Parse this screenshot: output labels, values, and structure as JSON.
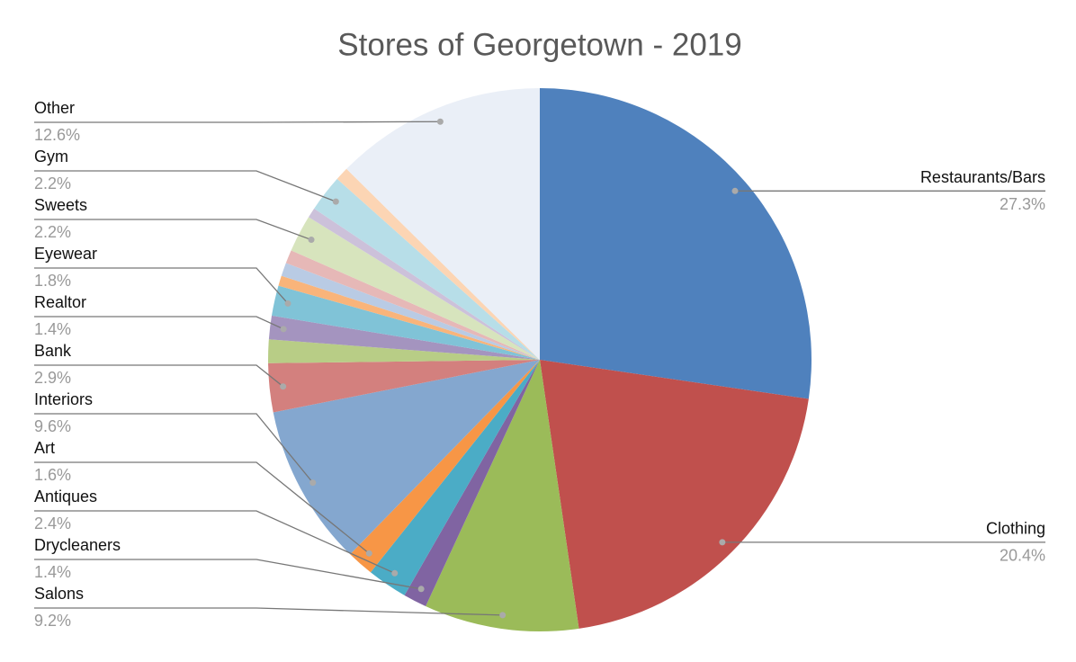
{
  "chart_data": {
    "type": "pie",
    "title": "Stores of Georgetown - 2019",
    "categories": [
      "Restaurants/Bars",
      "Clothing",
      "Salons",
      "Drycleaners",
      "Antiques",
      "Art",
      "Interiors",
      "Bank",
      null,
      "Realtor",
      "Eyewear",
      null,
      null,
      null,
      "Sweets",
      null,
      "Gym",
      null,
      "Other"
    ],
    "values": [
      27.3,
      20.4,
      9.2,
      1.4,
      2.4,
      1.6,
      9.6,
      2.9,
      1.4,
      1.4,
      1.8,
      0.6,
      0.8,
      0.8,
      2.2,
      0.6,
      2.2,
      0.8,
      12.6
    ],
    "value_labels": [
      "27.3%",
      "20.4%",
      "9.2%",
      "1.4%",
      "2.4%",
      "1.6%",
      "9.6%",
      "2.9%",
      null,
      "1.4%",
      "1.8%",
      null,
      null,
      null,
      "2.2%",
      null,
      "2.2%",
      null,
      "12.6%"
    ],
    "colors": [
      "#4f81bd",
      "#c0504d",
      "#9bbb59",
      "#8064a2",
      "#4bacc6",
      "#f79646",
      "#84a7cf",
      "#d3807e",
      "#b8cd86",
      "#a494bf",
      "#80c3d7",
      "#f9b47a",
      "#b9cbe4",
      "#e6b8b7",
      "#d7e4bd",
      "#ccc1da",
      "#b7dee8",
      "#fcd5b4",
      "#eaeff7"
    ]
  }
}
